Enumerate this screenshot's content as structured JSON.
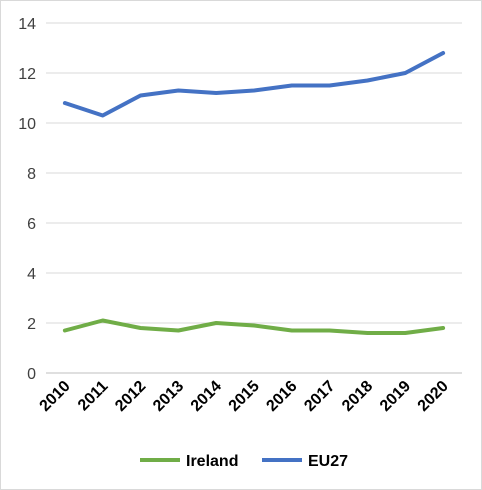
{
  "chart_data": {
    "type": "line",
    "title": "",
    "xlabel": "",
    "ylabel": "",
    "x": [
      "2010",
      "2011",
      "2012",
      "2013",
      "2014",
      "2015",
      "2016",
      "2017",
      "2018",
      "2019",
      "2020"
    ],
    "ylim": [
      0,
      14
    ],
    "yticks": [
      0,
      2,
      4,
      6,
      8,
      10,
      12,
      14
    ],
    "grid": true,
    "legend_position": "bottom",
    "series": [
      {
        "name": "Ireland",
        "color": "#70ad47",
        "values": [
          1.7,
          2.1,
          1.8,
          1.7,
          2.0,
          1.9,
          1.7,
          1.7,
          1.6,
          1.6,
          1.8
        ]
      },
      {
        "name": "EU27",
        "color": "#4472c4",
        "values": [
          10.8,
          10.3,
          11.1,
          11.3,
          11.2,
          11.3,
          11.5,
          11.5,
          11.7,
          12.0,
          12.8
        ]
      }
    ]
  }
}
